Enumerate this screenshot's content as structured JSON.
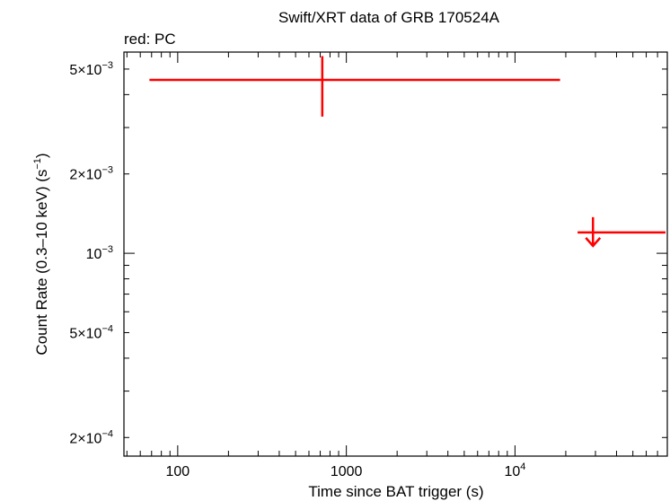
{
  "chart_data": {
    "type": "scatter",
    "title": "Swift/XRT data of GRB 170524A",
    "subtitle": "red: PC",
    "xlabel": "Time since BAT trigger (s)",
    "ylabel_parts": {
      "pre": "Count Rate (0.3–10 keV) (s",
      "sup": "−1",
      "post": ")"
    },
    "xscale": "log",
    "yscale": "log",
    "xlim": [
      48,
      80000
    ],
    "ylim": [
      0.00017,
      0.0058
    ],
    "grid": false,
    "series": [
      {
        "mode": "PC",
        "color": "#ff0000",
        "points": [
          {
            "x": 720,
            "xmin": 68,
            "xmax": 18500,
            "y": 0.00455,
            "ymin": 0.0033,
            "ymax": 0.0056,
            "upper_limit": false
          },
          {
            "x": 29000,
            "xmin": 23500,
            "xmax": 78000,
            "y": 0.0012,
            "upper_limit": true
          }
        ]
      }
    ],
    "x_ticks": [
      {
        "value": 100,
        "label": "100"
      },
      {
        "value": 1000,
        "label": "1000"
      },
      {
        "value": 10000,
        "label": "10",
        "sup": "4"
      }
    ],
    "y_ticks": [
      {
        "value": 0.005,
        "label": "5×10",
        "sup": "−3"
      },
      {
        "value": 0.002,
        "label": "2×10",
        "sup": "−3"
      },
      {
        "value": 0.001,
        "label": "10",
        "sup": "−3"
      },
      {
        "value": 0.0005,
        "label": "5×10",
        "sup": "−4"
      },
      {
        "value": 0.0002,
        "label": "2×10",
        "sup": "−4"
      }
    ]
  }
}
